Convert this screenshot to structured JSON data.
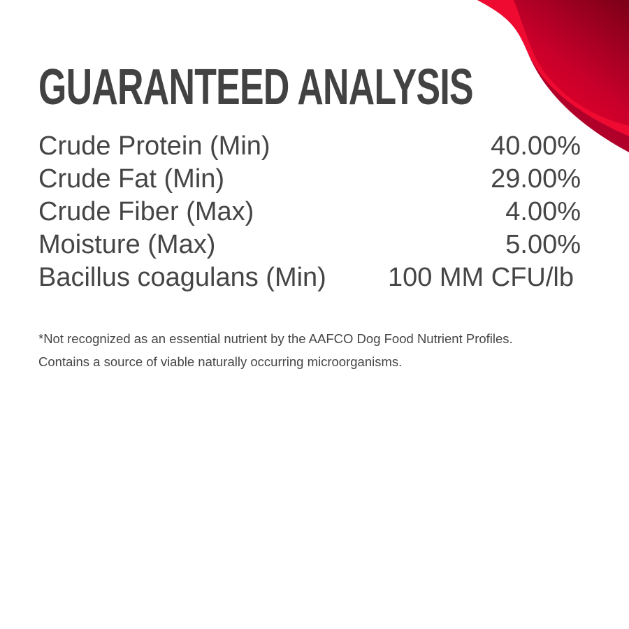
{
  "title": "GUARANTEED ANALYSIS",
  "rows": [
    {
      "label": "Crude Protein (Min)",
      "value": "40.00%"
    },
    {
      "label": "Crude Fat (Min)",
      "value": "29.00%"
    },
    {
      "label": "Crude Fiber (Max)",
      "value": "4.00%"
    },
    {
      "label": "Moisture (Max)",
      "value": "5.00%"
    },
    {
      "label": "Bacillus coagulans (Min)",
      "value": "100 MM CFU/lb"
    }
  ],
  "notes": [
    "*Not recognized as an essential nutrient by the AAFCO Dog Food Nutrient Profiles.",
    "Contains a source of viable naturally occurring microorganisms."
  ],
  "colors": {
    "accent_light": "#e8002a",
    "accent_dark": "#7a0018",
    "text": "#454545"
  }
}
